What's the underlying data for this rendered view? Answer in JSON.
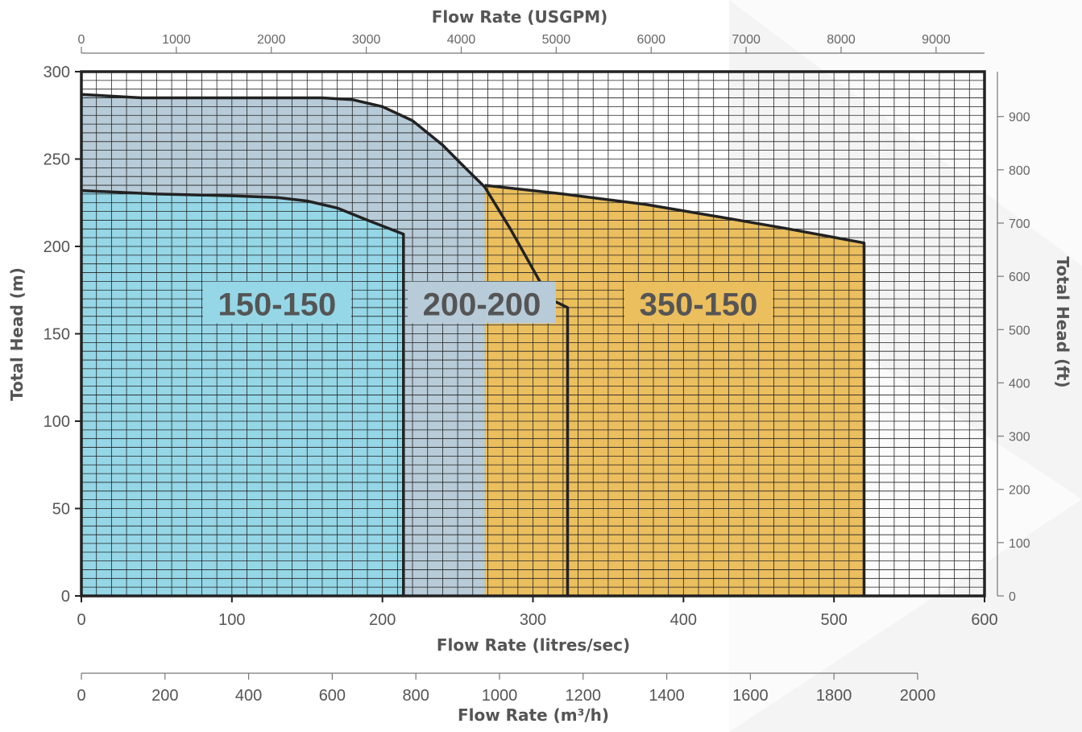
{
  "chart_data": {
    "type": "area",
    "title": "",
    "x_axis_bottom": {
      "label": "Flow Rate (litres/sec)",
      "range": [
        0,
        600
      ],
      "ticks": [
        "0",
        "100",
        "200",
        "300",
        "400",
        "500",
        "600"
      ]
    },
    "x_axis_top": {
      "label": "Flow Rate (USGPM)",
      "ticks": [
        "0",
        "1000",
        "2000",
        "3000",
        "4000",
        "5000",
        "6000",
        "7000",
        "8000",
        "9000"
      ]
    },
    "x_axis_m3h": {
      "label": "Flow Rate (m³/h)",
      "ticks": [
        "0",
        "200",
        "400",
        "600",
        "800",
        "1000",
        "1200",
        "1400",
        "1600",
        "1800",
        "2000"
      ]
    },
    "y_axis_left": {
      "label": "Total Head (m)",
      "range": [
        0,
        300
      ],
      "ticks": [
        "0",
        "50",
        "100",
        "150",
        "200",
        "250",
        "300"
      ]
    },
    "y_axis_right": {
      "label": "Total Head (ft)",
      "ticks": [
        "0",
        "100",
        "200",
        "300",
        "400",
        "500",
        "600",
        "700",
        "800",
        "900"
      ]
    },
    "grid": true,
    "series": [
      {
        "name": "150-150",
        "color": "#95d7e7",
        "points": [
          [
            0,
            232
          ],
          [
            50,
            230
          ],
          [
            100,
            229
          ],
          [
            130,
            228
          ],
          [
            150,
            226
          ],
          [
            170,
            222
          ],
          [
            190,
            215
          ],
          [
            214,
            207
          ],
          [
            214,
            0
          ]
        ]
      },
      {
        "name": "200-200",
        "color": "#b7cbd8",
        "points": [
          [
            0,
            287
          ],
          [
            40,
            285
          ],
          [
            80,
            285
          ],
          [
            120,
            285
          ],
          [
            160,
            285
          ],
          [
            180,
            284
          ],
          [
            200,
            280
          ],
          [
            220,
            272
          ],
          [
            240,
            258
          ],
          [
            255,
            245
          ],
          [
            268,
            234
          ],
          [
            285,
            210
          ],
          [
            300,
            187
          ],
          [
            311,
            170
          ],
          [
            323,
            165
          ],
          [
            323,
            0
          ]
        ]
      },
      {
        "name": "350-150",
        "color": "#ebbe5e",
        "points": [
          [
            268,
            235
          ],
          [
            320,
            230
          ],
          [
            375,
            224
          ],
          [
            430,
            216
          ],
          [
            470,
            210
          ],
          [
            520,
            202
          ],
          [
            520,
            0
          ]
        ]
      }
    ]
  }
}
